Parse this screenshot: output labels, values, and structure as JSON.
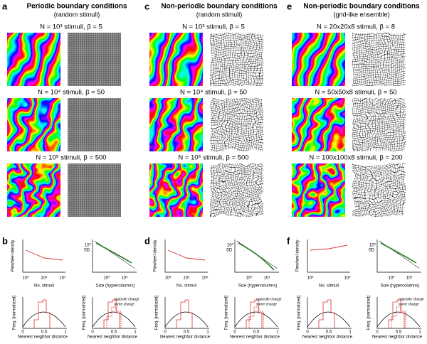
{
  "columns": [
    {
      "letter": "a",
      "title": "Periodic boundary conditions",
      "subtitle": "(random stimuli)",
      "maps": [
        "N = 10³ stimuli, β = 5",
        "N = 10⁴ stimuli, β = 50",
        "N = 10⁵ stimuli, β = 500"
      ],
      "bottom_letter": "b",
      "density_xticks": [
        "10³",
        "10⁴",
        "10⁵"
      ]
    },
    {
      "letter": "c",
      "title": "Non-periodic boundary conditions",
      "subtitle": "(random stimuli)",
      "maps": [
        "N = 10³ stimuli, β = 5",
        "N = 10⁴ stimuli, β = 50",
        "N = 10⁵ stimuli, β = 500"
      ],
      "bottom_letter": "d",
      "density_xticks": [
        "10³",
        "10⁴",
        "10⁵"
      ]
    },
    {
      "letter": "e",
      "title": "Non-periodic boundary conditions",
      "subtitle": "(grid-like ensemble)",
      "maps": [
        "N = 20x20x8 stimuli, β = 8",
        "N = 50x50x8 stimuli, β = 50",
        "N = 100x100x8 stimuli, β = 200"
      ],
      "bottom_letter": "f",
      "density_xticks": [
        "10²",
        "10³"
      ]
    }
  ],
  "plot_labels": {
    "density_y": "Pinwheel density",
    "density_x": "No. stimuli",
    "sd_y": "SD",
    "sd_x": "Size (hypercolumns)",
    "freq_y": "Freq. [normalized]",
    "freq_x": "Nearest neighbor distance",
    "legend_opposite": "opposite charge",
    "legend_same": "same charge",
    "sd_yticks": [
      "10⁰"
    ],
    "sd_xticks": [
      "10⁰",
      "10¹"
    ],
    "freq_xticks": [
      "0",
      "0.5",
      "1"
    ]
  }
}
